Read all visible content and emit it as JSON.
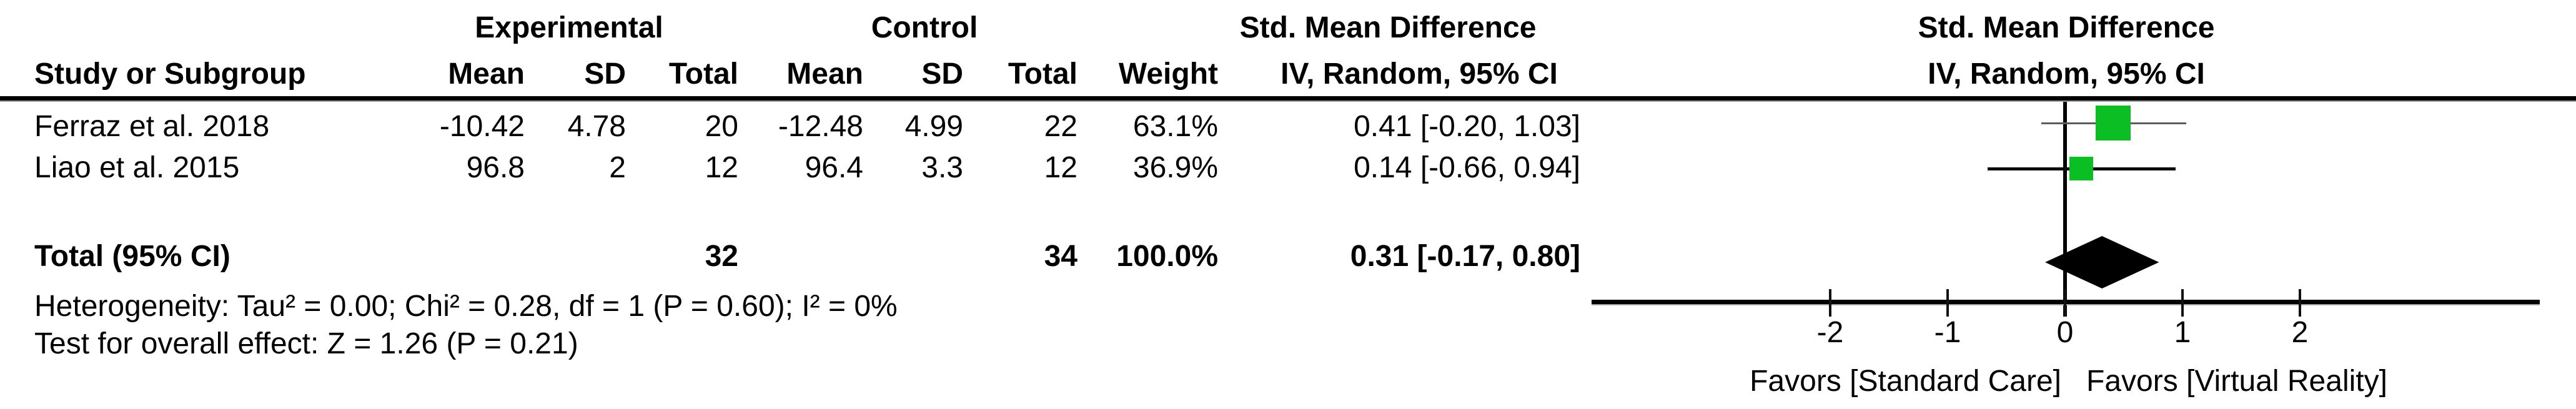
{
  "table": {
    "group_headers": {
      "experimental": "Experimental",
      "control": "Control",
      "smd_left": "Std. Mean Difference",
      "smd_right": "Std. Mean Difference"
    },
    "col_headers": {
      "study": "Study or Subgroup",
      "exp_mean": "Mean",
      "exp_sd": "SD",
      "exp_total": "Total",
      "ctrl_mean": "Mean",
      "ctrl_sd": "SD",
      "ctrl_total": "Total",
      "weight": "Weight",
      "iv_left": "IV, Random, 95% CI",
      "iv_right": "IV, Random, 95% CI"
    },
    "rows": [
      {
        "study": "Ferraz et al. 2018",
        "exp_mean": "-10.42",
        "exp_sd": "4.78",
        "exp_total": "20",
        "ctrl_mean": "-12.48",
        "ctrl_sd": "4.99",
        "ctrl_total": "22",
        "weight": "63.1%",
        "smd": "0.41 [-0.20, 1.03]"
      },
      {
        "study": "Liao et al. 2015",
        "exp_mean": "96.8",
        "exp_sd": "2",
        "exp_total": "12",
        "ctrl_mean": "96.4",
        "ctrl_sd": "3.3",
        "ctrl_total": "12",
        "weight": "36.9%",
        "smd": "0.14 [-0.66, 0.94]"
      }
    ],
    "total_row": {
      "label": "Total (95% CI)",
      "exp_total": "32",
      "ctrl_total": "34",
      "weight": "100.0%",
      "smd": "0.31 [-0.17, 0.80]"
    },
    "footnotes": {
      "heterogeneity": "Heterogeneity: Tau² = 0.00; Chi² = 0.28, df = 1 (P = 0.60); I² = 0%",
      "overall_effect": "Test for overall effect: Z = 1.26 (P = 0.21)"
    }
  },
  "chart_data": {
    "type": "forest",
    "effect_measure": "Std. Mean Difference",
    "method": "IV, Random, 95% CI",
    "studies": [
      {
        "name": "Ferraz et al. 2018",
        "smd": 0.41,
        "ci_low": -0.2,
        "ci_high": 1.03,
        "weight_pct": 63.1
      },
      {
        "name": "Liao et al. 2015",
        "smd": 0.14,
        "ci_low": -0.66,
        "ci_high": 0.94,
        "weight_pct": 36.9
      }
    ],
    "total": {
      "smd": 0.31,
      "ci_low": -0.17,
      "ci_high": 0.8
    },
    "axis": {
      "ticks": [
        -2,
        -1,
        0,
        1,
        2
      ],
      "range": [
        -4,
        4
      ],
      "grid": false
    },
    "xlabel_left": "Favors [Standard Care]",
    "xlabel_right": "Favors [Virtual Reality]",
    "marker_color": "#0abe23",
    "diamond_color": "#000000"
  }
}
